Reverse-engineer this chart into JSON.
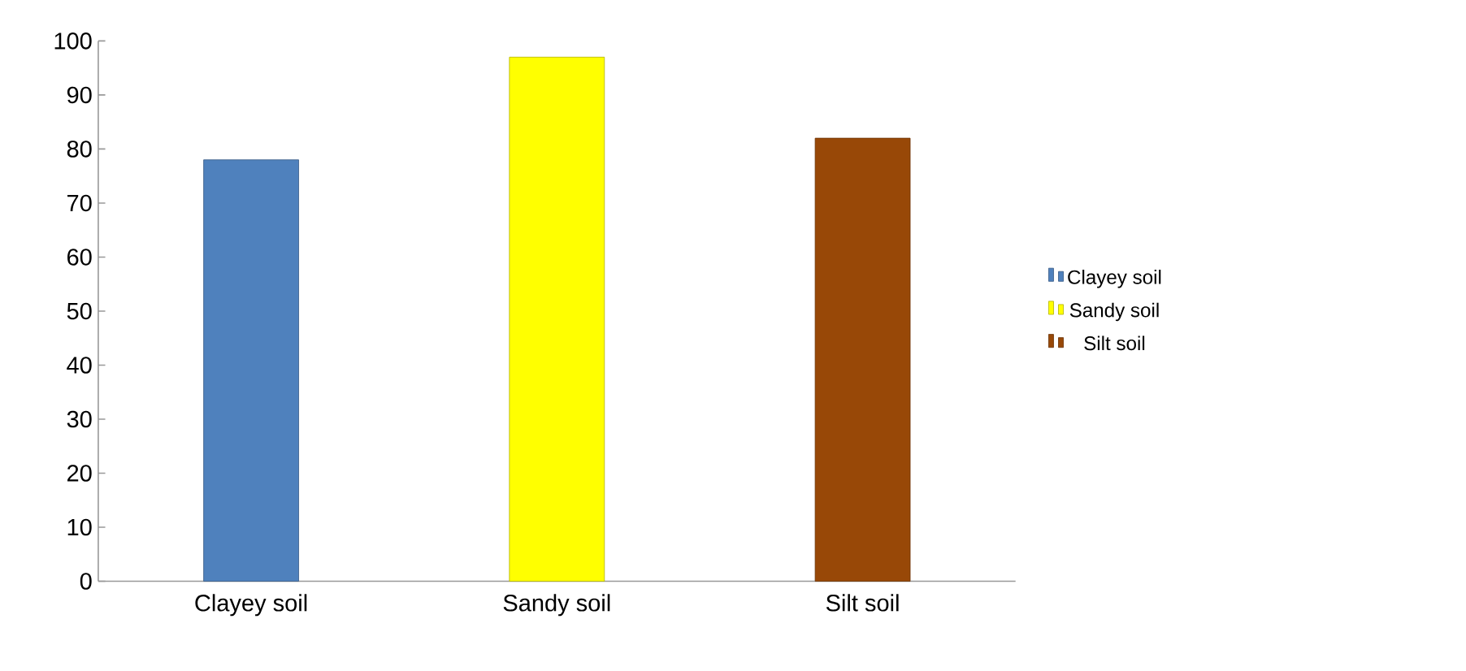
{
  "chart_data": {
    "type": "bar",
    "categories": [
      "Clayey soil",
      "Sandy soil",
      "Silt soil"
    ],
    "series": [
      {
        "name": "Clayey soil",
        "color": "#4f81bd",
        "values": [
          78,
          null,
          null
        ]
      },
      {
        "name": "Sandy soil",
        "color": "#ffff00",
        "values": [
          null,
          97,
          null
        ]
      },
      {
        "name": "Silt soil",
        "color": "#984807",
        "values": [
          null,
          null,
          82
        ]
      }
    ],
    "ylim": [
      0,
      100
    ],
    "yticks": [
      0,
      10,
      20,
      30,
      40,
      50,
      60,
      70,
      80,
      90,
      100
    ],
    "grid": false,
    "legend": "right"
  }
}
